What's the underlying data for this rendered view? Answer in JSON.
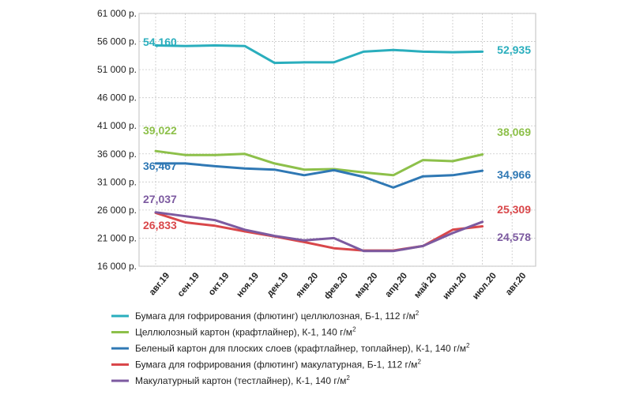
{
  "chart_data": {
    "type": "line",
    "title": "",
    "xlabel": "",
    "ylabel": "",
    "ylim": [
      16000,
      61000
    ],
    "yticks": [
      16000,
      21000,
      26000,
      31000,
      36000,
      41000,
      46000,
      51000,
      56000,
      61000
    ],
    "ytick_labels": [
      "16 000 р.",
      "21 000 р.",
      "26 000 р.",
      "31 000 р.",
      "36 000 р.",
      "41 000 р.",
      "46 000 р.",
      "51 000 р.",
      "56 000 р.",
      "61 000 р."
    ],
    "categories": [
      "авг.19",
      "сен.19",
      "окт.19",
      "ноя.19",
      "дек.19",
      "янв.20",
      "фев.20",
      "мар.20",
      "апр.20",
      "май 20",
      "июн.20",
      "июл.20",
      "авг.20"
    ],
    "grid": true,
    "legend_position": "bottom",
    "series": [
      {
        "name": "Бумага для гофрирования (флютинг) целлюлозная, Б-1, 112 г/м",
        "unit_sup": "2",
        "color": "#2aaebd",
        "values": [
          55300,
          55200,
          55300,
          55200,
          52200,
          52300,
          52300,
          54200,
          54500,
          54200,
          54100,
          54200,
          null
        ],
        "start_label": "54,160",
        "end_label": "52,935"
      },
      {
        "name": "Целлюлозный картон (крафтлайнер), К-1, 140 г/м",
        "unit_sup": "2",
        "color": "#8dc04a",
        "values": [
          36500,
          35800,
          35800,
          36000,
          34300,
          33200,
          33300,
          32700,
          32200,
          34900,
          34700,
          35900,
          null
        ],
        "start_label": "39,022",
        "end_label": "38,069"
      },
      {
        "name": "Беленый картон для плоских слоев (крафтлайнер, топлайнер), К-1, 140 г/м",
        "unit_sup": "2",
        "color": "#2f78b4",
        "values": [
          34300,
          34300,
          33800,
          33400,
          33200,
          32200,
          33100,
          31900,
          30000,
          32000,
          32200,
          33000,
          null
        ],
        "start_label": "36,467",
        "end_label": "34,966"
      },
      {
        "name": "Бумага для гофрирования (флютинг) макулатурная, Б-1, 112 г/м",
        "unit_sup": "2",
        "color": "#d9474a",
        "values": [
          25500,
          23800,
          23200,
          22200,
          21300,
          20300,
          19200,
          18800,
          18800,
          19600,
          22500,
          23100,
          null
        ],
        "start_label": "26,833",
        "end_label": "25,309"
      },
      {
        "name": "Макулатурный картон (тестлайнер), К-1, 140 г/м",
        "unit_sup": "2",
        "color": "#7c5aa0",
        "values": [
          25600,
          24900,
          24200,
          22500,
          21400,
          20600,
          21000,
          18700,
          18700,
          19600,
          21900,
          23900,
          null
        ],
        "start_label": "27,037",
        "end_label": "24,578"
      }
    ]
  }
}
